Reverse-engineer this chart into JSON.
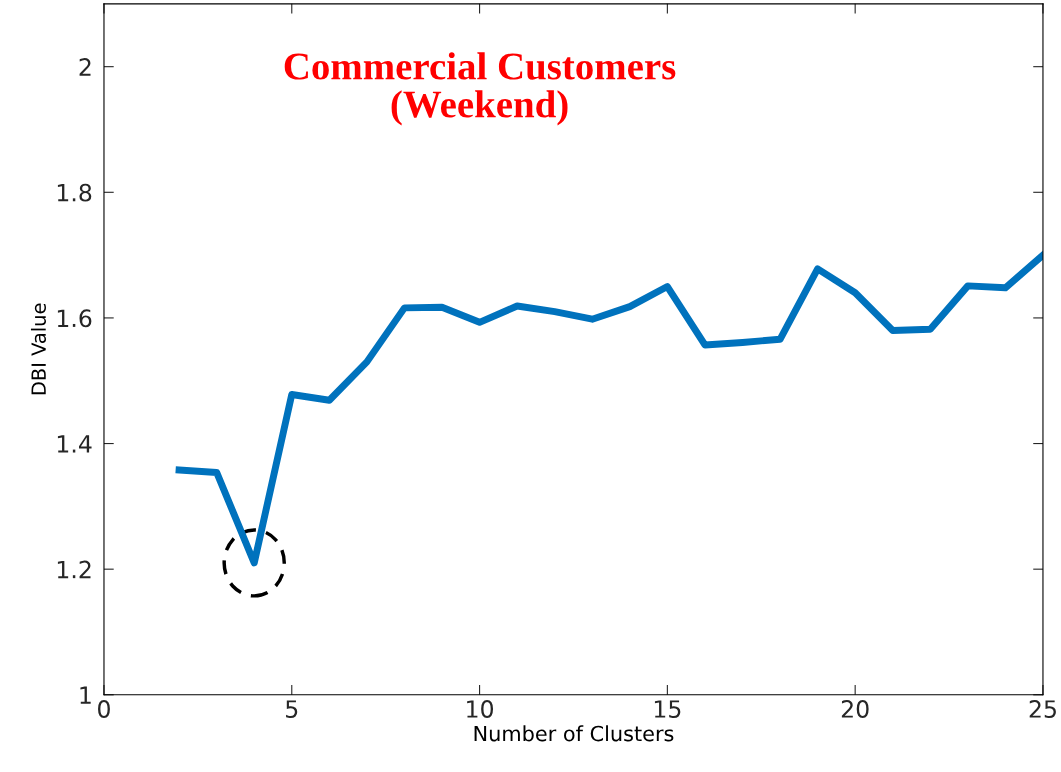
{
  "chart_data": {
    "type": "line",
    "title": "Commercial Customers\n(Weekend)",
    "xlabel": "Number of Clusters",
    "ylabel": "DBI Value",
    "x": [
      2,
      3,
      4,
      5,
      6,
      7,
      8,
      9,
      10,
      11,
      12,
      13,
      14,
      15,
      16,
      17,
      18,
      19,
      20,
      21,
      22,
      23,
      24,
      25
    ],
    "series": [
      {
        "color": "#0072bd",
        "values": [
          1.358,
          1.354,
          1.21,
          1.478,
          1.469,
          1.53,
          1.616,
          1.617,
          1.593,
          1.619,
          1.61,
          1.598,
          1.618,
          1.65,
          1.557,
          1.561,
          1.566,
          1.678,
          1.64,
          1.58,
          1.582,
          1.651,
          1.648,
          1.7
        ]
      }
    ],
    "xlim": [
      0,
      25
    ],
    "xticks": [
      0,
      5,
      10,
      15,
      20,
      25
    ],
    "ylim": [
      1,
      2.1
    ],
    "yticks": [
      1,
      1.2,
      1.4,
      1.6,
      1.8,
      2
    ],
    "grid": false,
    "legend": false,
    "marker": "none",
    "line_style": "solid"
  }
}
